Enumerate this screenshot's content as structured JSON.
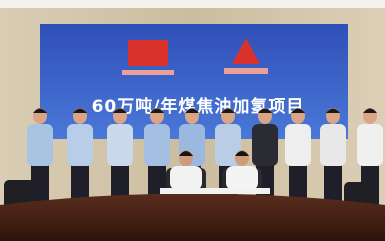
{
  "banner": {
    "title": "60万吨/年煤焦油加氢项目"
  }
}
